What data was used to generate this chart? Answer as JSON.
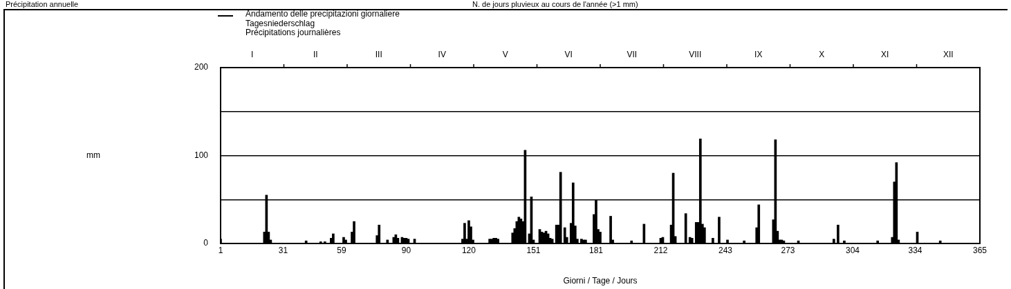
{
  "chart_data": {
    "type": "bar",
    "annotations": [
      "Précipitation annuelle",
      "N. de jours pluvieux au cours de l'année (>1 mm)",
      "mm",
      "I",
      "II",
      "III",
      "IV",
      "V",
      "VI",
      "VII",
      "VIII",
      "IX",
      "X",
      "XI",
      "XII"
    ],
    "xlabel": "Giorni / Tage / Jours",
    "xlim": [
      1,
      365
    ],
    "xticks": [
      1,
      31,
      59,
      90,
      120,
      151,
      181,
      212,
      243,
      273,
      304,
      334,
      365
    ],
    "ylim": [
      0,
      200
    ],
    "yticks": [
      0,
      {
        "value": 50,
        "label": null
      },
      100,
      {
        "value": 150,
        "label": null
      },
      200
    ],
    "grid": "y",
    "legend": "top",
    "series": [
      {
        "name": "Andamento delle precipitazioni giornaliere\nTagesniederschlag\nPrécipitations journalières",
        "color": "#000000",
        "x": [
          1,
          22,
          23,
          24,
          25,
          42,
          49,
          51,
          54,
          55,
          60,
          61,
          64,
          65,
          76,
          77,
          81,
          84,
          85,
          86,
          88,
          89,
          90,
          91,
          94,
          117,
          118,
          119,
          120,
          121,
          122,
          130,
          131,
          132,
          133,
          134,
          141,
          142,
          143,
          144,
          145,
          146,
          147,
          149,
          150,
          151,
          154,
          155,
          156,
          157,
          158,
          159,
          160,
          162,
          163,
          164,
          166,
          167,
          169,
          170,
          171,
          172,
          174,
          175,
          176,
          180,
          181,
          182,
          183,
          188,
          189,
          198,
          204,
          212,
          213,
          217,
          218,
          219,
          224,
          226,
          227,
          229,
          230,
          231,
          232,
          233,
          237,
          240,
          244,
          252,
          258,
          259,
          266,
          267,
          268,
          269,
          270,
          271,
          278,
          295,
          297,
          300,
          316,
          323,
          324,
          325,
          326,
          335,
          346
        ],
        "values": [
          5,
          13,
          55,
          13,
          4,
          3,
          2,
          2,
          6,
          11,
          7,
          4,
          13,
          25,
          9,
          21,
          4,
          7,
          10,
          6,
          7,
          6,
          6,
          5,
          5,
          5,
          23,
          5,
          26,
          19,
          4,
          5,
          5,
          6,
          6,
          5,
          12,
          17,
          25,
          30,
          28,
          25,
          106,
          11,
          53,
          4,
          16,
          13,
          12,
          14,
          11,
          6,
          5,
          21,
          21,
          81,
          18,
          7,
          23,
          69,
          20,
          5,
          5,
          4,
          4,
          33,
          49,
          16,
          13,
          31,
          4,
          3,
          22,
          6,
          7,
          21,
          80,
          8,
          34,
          7,
          6,
          24,
          24,
          119,
          22,
          18,
          6,
          30,
          4,
          3,
          18,
          44,
          27,
          118,
          14,
          4,
          4,
          3,
          3,
          5,
          21,
          3,
          3,
          7,
          70,
          92,
          4,
          13,
          3
        ]
      }
    ]
  }
}
